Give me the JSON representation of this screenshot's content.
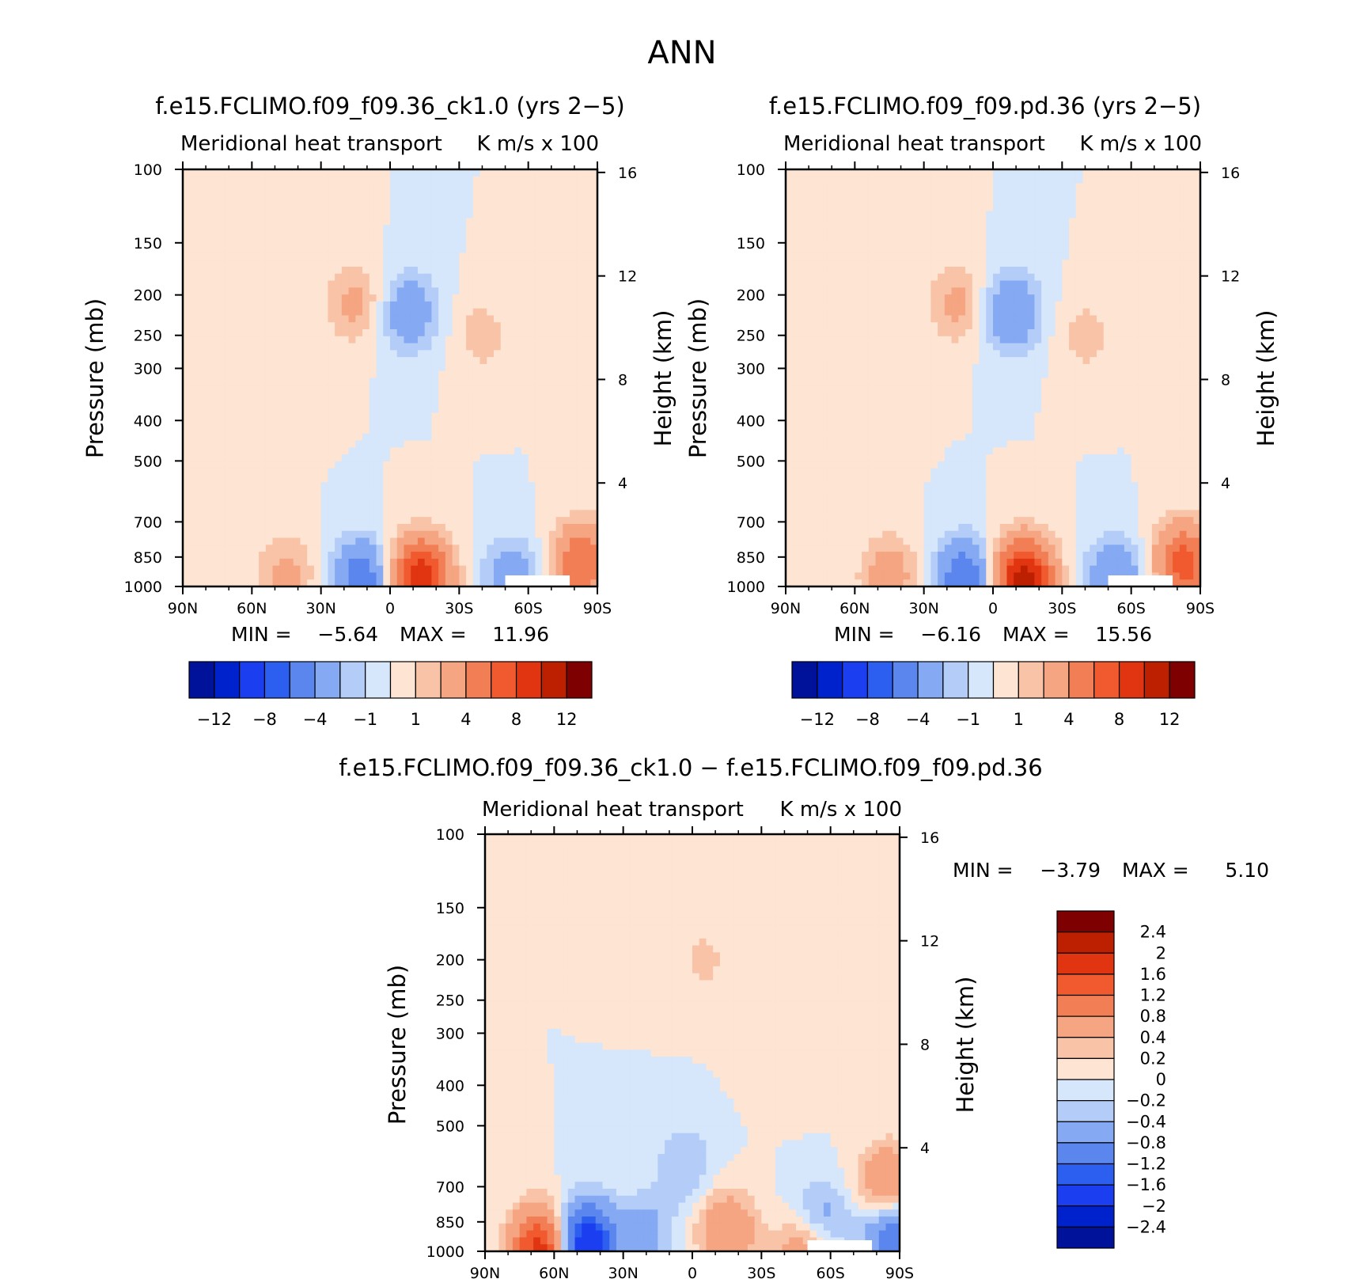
{
  "figure": {
    "title": "ANN"
  },
  "chart_data": [
    {
      "type": "heatmap",
      "title": "f.e15.FCLIMO.f09_f09.36_ck1.0 (yrs 2−5)",
      "subtitle_left": "Meridional heat transport",
      "subtitle_right": "K m/s x 100",
      "ylabel": "Pressure (mb)",
      "ylabel_right": "Height (km)",
      "x_ticks": [
        "90N",
        "60N",
        "30N",
        "0",
        "30S",
        "60S",
        "90S"
      ],
      "y_ticks": [
        "100",
        "150",
        "200",
        "250",
        "300",
        "400",
        "500",
        "700",
        "850",
        "1000"
      ],
      "y_ticks_right": [
        "16",
        "12",
        "8",
        "4"
      ],
      "min_label": "MIN =",
      "min_value": "−5.64",
      "max_label": "MAX =",
      "max_value": "11.96",
      "colorbar_labels": [
        "−12",
        "−8",
        "−4",
        "−1",
        "1",
        "4",
        "8",
        "12"
      ],
      "features": [
        {
          "lat": 45,
          "p": 940,
          "v": 2.5
        },
        {
          "lat": 12,
          "p": 960,
          "v": -5.5
        },
        {
          "lat": -13,
          "p": 960,
          "v": 10
        },
        {
          "lat": -53,
          "p": 960,
          "v": -3.5
        },
        {
          "lat": 15,
          "p": 210,
          "v": 2.5
        },
        {
          "lat": -8,
          "p": 220,
          "v": -3.5
        },
        {
          "lat": -40,
          "p": 250,
          "v": 1.5
        },
        {
          "lat": -83,
          "p": 880,
          "v": 6
        },
        {
          "lat": 55,
          "p": 400,
          "v": 0.4
        }
      ],
      "colors": {
        "neg": [
          "#d6e6fb",
          "#b3cdf8",
          "#85a9f2",
          "#5a86ee",
          "#2c5ff0",
          "#1a3ef0",
          "#0022cc",
          "#00129a",
          "#000a70"
        ],
        "pos": [
          "#fde4d3",
          "#f9c3a8",
          "#f5a582",
          "#f27e55",
          "#f05a2e",
          "#e03510",
          "#bd2000",
          "#7e0000"
        ]
      }
    },
    {
      "type": "heatmap",
      "title": "f.e15.FCLIMO.f09_f09.pd.36 (yrs 2−5)",
      "subtitle_left": "Meridional heat transport",
      "subtitle_right": "K m/s x 100",
      "ylabel": "Pressure (mb)",
      "ylabel_right": "Height (km)",
      "x_ticks": [
        "90N",
        "60N",
        "30N",
        "0",
        "30S",
        "60S",
        "90S"
      ],
      "y_ticks": [
        "100",
        "150",
        "200",
        "250",
        "300",
        "400",
        "500",
        "700",
        "850",
        "1000"
      ],
      "y_ticks_right": [
        "16",
        "12",
        "8",
        "4"
      ],
      "min_label": "MIN =",
      "min_value": "−6.16",
      "max_label": "MAX =",
      "max_value": "15.56",
      "colorbar_labels": [
        "−12",
        "−8",
        "−4",
        "−1",
        "1",
        "4",
        "8",
        "12"
      ],
      "features": [
        {
          "lat": 45,
          "p": 940,
          "v": 3
        },
        {
          "lat": 12,
          "p": 960,
          "v": -6
        },
        {
          "lat": -13,
          "p": 960,
          "v": 11
        },
        {
          "lat": -53,
          "p": 960,
          "v": -4
        },
        {
          "lat": 15,
          "p": 210,
          "v": 2.5
        },
        {
          "lat": -8,
          "p": 220,
          "v": -4
        },
        {
          "lat": -40,
          "p": 250,
          "v": 1.5
        },
        {
          "lat": -83,
          "p": 880,
          "v": 7
        },
        {
          "lat": 55,
          "p": 400,
          "v": 0.4
        }
      ],
      "colors": {
        "neg": [
          "#d6e6fb",
          "#b3cdf8",
          "#85a9f2",
          "#5a86ee",
          "#2c5ff0",
          "#1a3ef0",
          "#0022cc",
          "#00129a",
          "#000a70"
        ],
        "pos": [
          "#fde4d3",
          "#f9c3a8",
          "#f5a582",
          "#f27e55",
          "#f05a2e",
          "#e03510",
          "#bd2000",
          "#7e0000"
        ]
      }
    },
    {
      "type": "heatmap",
      "title": "f.e15.FCLIMO.f09_f09.36_ck1.0 − f.e15.FCLIMO.f09_f09.pd.36",
      "subtitle_left": "Meridional heat transport",
      "subtitle_right": "K m/s x 100",
      "ylabel": "Pressure (mb)",
      "ylabel_right": "Height (km)",
      "x_ticks": [
        "90N",
        "60N",
        "30N",
        "0",
        "30S",
        "60S",
        "90S"
      ],
      "y_ticks": [
        "100",
        "150",
        "200",
        "250",
        "300",
        "400",
        "500",
        "700",
        "850",
        "1000"
      ],
      "y_ticks_right": [
        "16",
        "12",
        "8",
        "4"
      ],
      "min_label": "MIN =",
      "min_value": "−3.79",
      "max_label": "MAX =",
      "max_value": "5.10",
      "colorbar_labels": [
        "2.4",
        "2",
        "1.6",
        "1.2",
        "0.8",
        "0.4",
        "0.2",
        "0",
        "−0.2",
        "−0.4",
        "−0.8",
        "−1.2",
        "−1.6",
        "−2",
        "−2.4"
      ],
      "features": [
        {
          "lat": 47,
          "p": 960,
          "v": -2.2
        },
        {
          "lat": 65,
          "p": 985,
          "v": 2
        },
        {
          "lat": 20,
          "p": 900,
          "v": -0.5
        },
        {
          "lat": -15,
          "p": 890,
          "v": 0.8
        },
        {
          "lat": -55,
          "p": 860,
          "v": -0.8
        },
        {
          "lat": -50,
          "p": 990,
          "v": 1
        },
        {
          "lat": -85,
          "p": 700,
          "v": 1
        },
        {
          "lat": -87,
          "p": 900,
          "v": -1.2
        },
        {
          "lat": 3,
          "p": 620,
          "v": -0.4
        },
        {
          "lat": -40,
          "p": 350,
          "v": 0.2
        },
        {
          "lat": -5,
          "p": 200,
          "v": 0.25
        }
      ],
      "colors": {
        "neg": [
          "#d6e6fb",
          "#b3cdf8",
          "#85a9f2",
          "#5a86ee",
          "#2c5ff0",
          "#1a3ef0",
          "#0022cc",
          "#00129a"
        ],
        "pos": [
          "#fde4d3",
          "#f9c3a8",
          "#f5a582",
          "#f27e55",
          "#f05a2e",
          "#e03510",
          "#bd2000",
          "#7e0000"
        ]
      }
    }
  ]
}
